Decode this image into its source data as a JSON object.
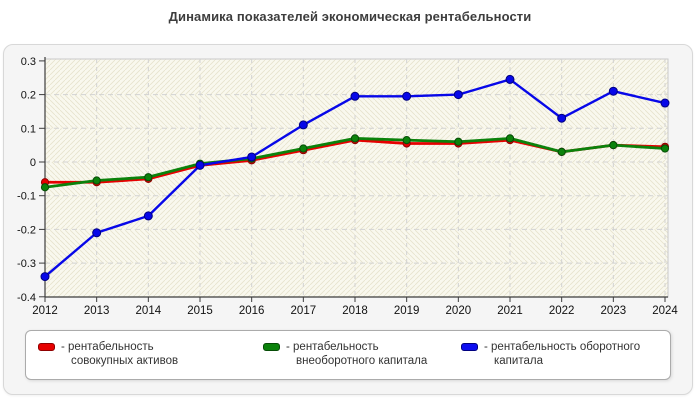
{
  "title": "Динамика показателей экономическая рентабельности",
  "legend": {
    "items": [
      {
        "label": "- рентабельность совокупных активов",
        "color": "#e60000",
        "border": "#8f0000"
      },
      {
        "label": "- рентабельность внеоборотного капитала",
        "color": "#0b820b",
        "border": "#064c06"
      },
      {
        "label": "- рентабельность оборотного капитала",
        "color": "#0d0df0",
        "border": "#000080"
      }
    ]
  },
  "chart_data": {
    "type": "line",
    "title": "Динамика показателей экономическая рентабельности",
    "categories": [
      "2012",
      "2013",
      "2014",
      "2015",
      "2016",
      "2017",
      "2018",
      "2019",
      "2020",
      "2021",
      "2022",
      "2023",
      "2024"
    ],
    "series": [
      {
        "name": "рентабельность совокупных активов",
        "color": "#e60000",
        "marker_border": "#8f0000",
        "values": [
          -0.06,
          -0.06,
          -0.05,
          -0.01,
          0.005,
          0.035,
          0.065,
          0.055,
          0.055,
          0.065,
          0.03,
          0.05,
          0.045
        ]
      },
      {
        "name": "рентабельность внеоборотного капитала",
        "color": "#0b820b",
        "marker_border": "#064c06",
        "values": [
          -0.075,
          -0.055,
          -0.045,
          -0.005,
          0.01,
          0.04,
          0.07,
          0.065,
          0.06,
          0.07,
          0.03,
          0.05,
          0.04
        ]
      },
      {
        "name": "рентабельность оборотного капитала",
        "color": "#0707e8",
        "marker_border": "#000080",
        "values": [
          -0.34,
          -0.21,
          -0.16,
          -0.01,
          0.015,
          0.11,
          0.195,
          0.195,
          0.2,
          0.245,
          0.13,
          0.21,
          0.175
        ]
      }
    ],
    "xlabel": "",
    "ylabel": "",
    "ylim": [
      -0.4,
      0.3
    ],
    "y_ticks": [
      "0.3",
      "0.2",
      "0.1",
      "0",
      "-0.1",
      "-0.2",
      "-0.3",
      "-0.4"
    ],
    "grid": true,
    "grid_style": "dashed",
    "legend_position": "bottom",
    "plot_bg": "#f9f8ee",
    "hatch_line": "#e6e2cc",
    "axis_color": "#3c3c3c",
    "grid_color": "#d2d2d2"
  }
}
